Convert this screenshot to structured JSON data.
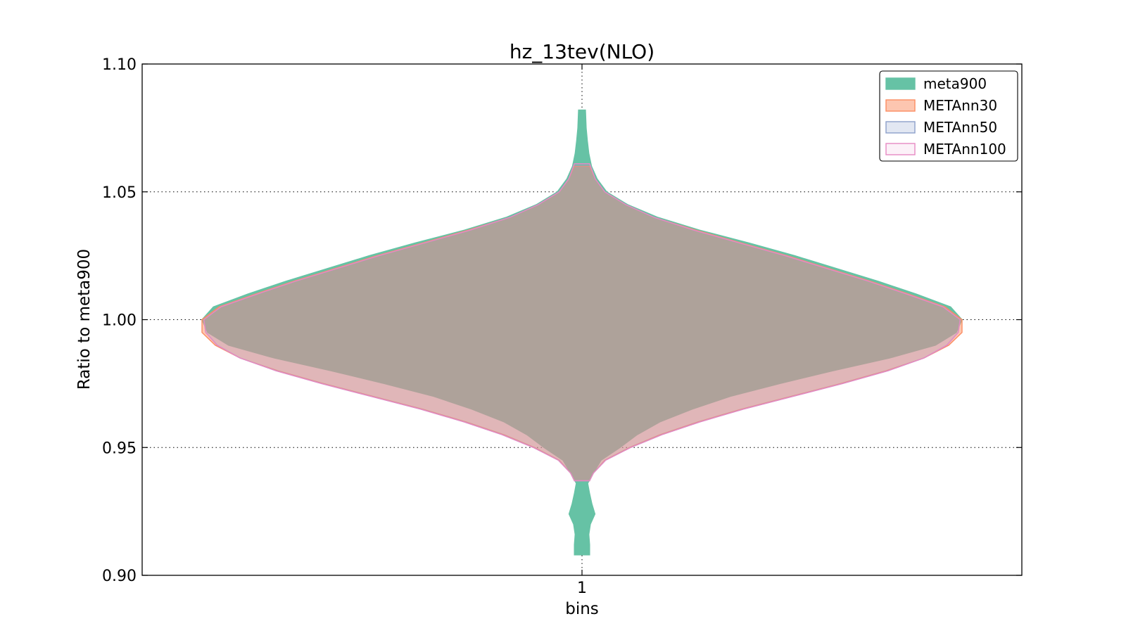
{
  "chart_data": {
    "type": "violin",
    "title": "hz_13tev(NLO)",
    "xlabel": "bins",
    "ylabel": "Ratio to meta900",
    "categories": [
      "1"
    ],
    "ylim": [
      0.9,
      1.1
    ],
    "yticks": [
      "0.90",
      "0.95",
      "1.00",
      "1.05",
      "1.10"
    ],
    "grid": true,
    "legend_position": "upper right",
    "series": [
      {
        "name": "meta900",
        "color": "#66c2a5",
        "fill_opacity": 1.0,
        "y_range": [
          0.908,
          1.082
        ],
        "profile": [
          [
            0.908,
            0.02
          ],
          [
            0.912,
            0.02
          ],
          [
            0.916,
            0.018
          ],
          [
            0.92,
            0.022
          ],
          [
            0.924,
            0.034
          ],
          [
            0.928,
            0.026
          ],
          [
            0.932,
            0.02
          ],
          [
            0.936,
            0.015
          ],
          [
            0.94,
            0.03
          ],
          [
            0.945,
            0.05
          ],
          [
            0.95,
            0.1
          ],
          [
            0.955,
            0.145
          ],
          [
            0.96,
            0.205
          ],
          [
            0.965,
            0.29
          ],
          [
            0.97,
            0.39
          ],
          [
            0.975,
            0.52
          ],
          [
            0.98,
            0.66
          ],
          [
            0.985,
            0.81
          ],
          [
            0.99,
            0.93
          ],
          [
            0.995,
            0.985
          ],
          [
            1.0,
            1.0
          ],
          [
            1.005,
            0.97
          ],
          [
            1.01,
            0.88
          ],
          [
            1.015,
            0.78
          ],
          [
            1.02,
            0.67
          ],
          [
            1.025,
            0.56
          ],
          [
            1.03,
            0.44
          ],
          [
            1.035,
            0.31
          ],
          [
            1.04,
            0.2
          ],
          [
            1.045,
            0.12
          ],
          [
            1.05,
            0.065
          ],
          [
            1.055,
            0.04
          ],
          [
            1.06,
            0.025
          ],
          [
            1.065,
            0.018
          ],
          [
            1.07,
            0.014
          ],
          [
            1.075,
            0.011
          ],
          [
            1.082,
            0.009
          ]
        ]
      },
      {
        "name": "METAnn30",
        "color": "#fc8d62",
        "fill_opacity": 0.5,
        "y_range": [
          0.937,
          1.06
        ],
        "profile": [
          [
            0.937,
            0.02
          ],
          [
            0.94,
            0.03
          ],
          [
            0.945,
            0.06
          ],
          [
            0.95,
            0.125
          ],
          [
            0.955,
            0.205
          ],
          [
            0.96,
            0.305
          ],
          [
            0.965,
            0.42
          ],
          [
            0.97,
            0.55
          ],
          [
            0.975,
            0.68
          ],
          [
            0.98,
            0.8
          ],
          [
            0.985,
            0.9
          ],
          [
            0.99,
            0.965
          ],
          [
            0.995,
            1.0
          ],
          [
            1.0,
            1.0
          ],
          [
            1.005,
            0.955
          ],
          [
            1.01,
            0.86
          ],
          [
            1.015,
            0.76
          ],
          [
            1.02,
            0.65
          ],
          [
            1.025,
            0.54
          ],
          [
            1.03,
            0.42
          ],
          [
            1.035,
            0.3
          ],
          [
            1.04,
            0.19
          ],
          [
            1.045,
            0.115
          ],
          [
            1.05,
            0.06
          ],
          [
            1.055,
            0.035
          ],
          [
            1.06,
            0.02
          ]
        ]
      },
      {
        "name": "METAnn50",
        "color": "#8da0cb",
        "fill_opacity": 0.25,
        "y_range": [
          0.937,
          1.061
        ],
        "profile": [
          [
            0.937,
            0.02
          ],
          [
            0.94,
            0.03
          ],
          [
            0.945,
            0.062
          ],
          [
            0.95,
            0.128
          ],
          [
            0.955,
            0.21
          ],
          [
            0.96,
            0.31
          ],
          [
            0.965,
            0.425
          ],
          [
            0.97,
            0.555
          ],
          [
            0.975,
            0.685
          ],
          [
            0.98,
            0.805
          ],
          [
            0.985,
            0.9
          ],
          [
            0.99,
            0.96
          ],
          [
            0.995,
            0.99
          ],
          [
            1.0,
            0.995
          ],
          [
            1.005,
            0.95
          ],
          [
            1.01,
            0.855
          ],
          [
            1.015,
            0.755
          ],
          [
            1.02,
            0.645
          ],
          [
            1.025,
            0.535
          ],
          [
            1.03,
            0.415
          ],
          [
            1.035,
            0.295
          ],
          [
            1.04,
            0.19
          ],
          [
            1.045,
            0.115
          ],
          [
            1.05,
            0.06
          ],
          [
            1.055,
            0.035
          ],
          [
            1.061,
            0.02
          ]
        ]
      },
      {
        "name": "METAnn100",
        "color": "#e78ac3",
        "fill_opacity": 0.12,
        "y_range": [
          0.937,
          1.061
        ],
        "profile": [
          [
            0.937,
            0.02
          ],
          [
            0.94,
            0.03
          ],
          [
            0.945,
            0.062
          ],
          [
            0.95,
            0.128
          ],
          [
            0.955,
            0.21
          ],
          [
            0.96,
            0.31
          ],
          [
            0.965,
            0.425
          ],
          [
            0.97,
            0.555
          ],
          [
            0.975,
            0.685
          ],
          [
            0.98,
            0.805
          ],
          [
            0.985,
            0.9
          ],
          [
            0.99,
            0.96
          ],
          [
            0.995,
            0.99
          ],
          [
            1.0,
            0.995
          ],
          [
            1.005,
            0.95
          ],
          [
            1.01,
            0.855
          ],
          [
            1.015,
            0.755
          ],
          [
            1.02,
            0.645
          ],
          [
            1.025,
            0.535
          ],
          [
            1.03,
            0.415
          ],
          [
            1.035,
            0.295
          ],
          [
            1.04,
            0.19
          ],
          [
            1.045,
            0.115
          ],
          [
            1.05,
            0.06
          ],
          [
            1.055,
            0.035
          ],
          [
            1.061,
            0.02
          ]
        ]
      }
    ]
  }
}
